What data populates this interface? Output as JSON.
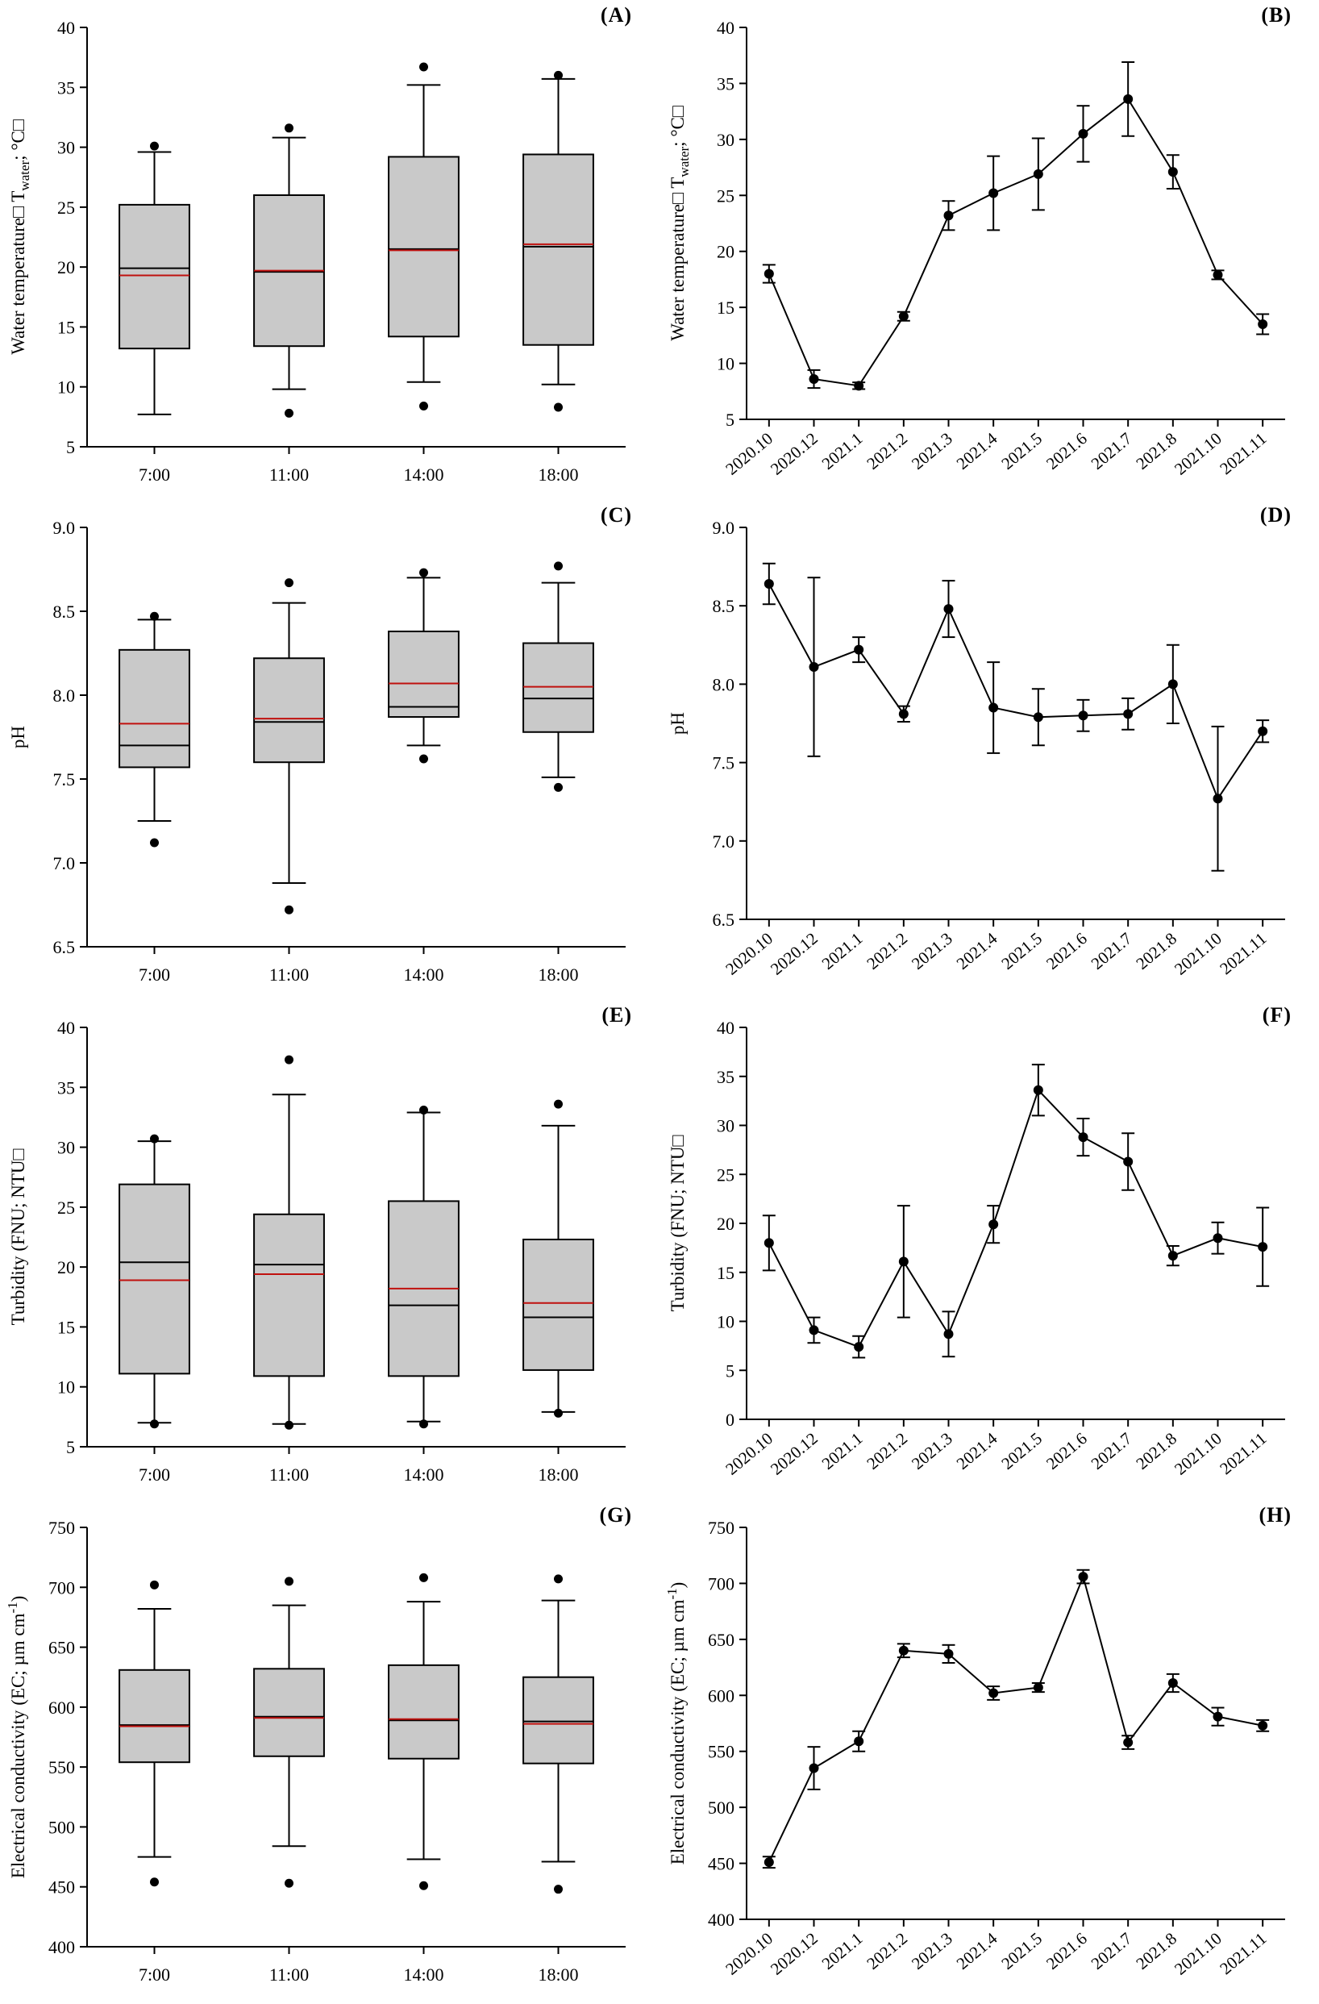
{
  "figure": {
    "panel_ids": [
      "A",
      "B",
      "C",
      "D",
      "E",
      "F",
      "G",
      "H"
    ],
    "left_column_type": "box plots by time of day",
    "right_column_type": "monthly means with error bars"
  },
  "colors": {
    "box_fill": "#c9c9c9",
    "mean_line": "#c0110e",
    "axis": "#000000",
    "point": "#000000"
  },
  "chart_data": [
    {
      "id": "A",
      "panel_label": "(A)",
      "type": "box",
      "ylabel_parts": [
        {
          "t": "Water temperature□ T"
        },
        {
          "t": "water",
          "sub": true
        },
        {
          "t": "; °C□"
        }
      ],
      "ylim": [
        5,
        40
      ],
      "ytick_step": 5,
      "ytick_decimals": 0,
      "categories": [
        "7:00",
        "11:00",
        "14:00",
        "18:00"
      ],
      "boxes": [
        {
          "whisker_low": 7.7,
          "q1": 13.2,
          "median": 19.9,
          "mean": 19.3,
          "q3": 25.2,
          "whisker_high": 29.6,
          "outliers": [
            30.1
          ]
        },
        {
          "whisker_low": 9.8,
          "q1": 13.4,
          "median": 19.6,
          "mean": 19.7,
          "q3": 26.0,
          "whisker_high": 30.8,
          "outliers": [
            31.6,
            7.8
          ]
        },
        {
          "whisker_low": 10.4,
          "q1": 14.2,
          "median": 21.5,
          "mean": 21.4,
          "q3": 29.2,
          "whisker_high": 35.2,
          "outliers": [
            36.7,
            8.4
          ]
        },
        {
          "whisker_low": 10.2,
          "q1": 13.5,
          "median": 21.7,
          "mean": 21.9,
          "q3": 29.4,
          "whisker_high": 35.7,
          "outliers": [
            36.0,
            8.3
          ]
        }
      ]
    },
    {
      "id": "B",
      "panel_label": "(B)",
      "type": "line",
      "ylabel_parts": [
        {
          "t": "Water temperature□ T"
        },
        {
          "t": "water",
          "sub": true
        },
        {
          "t": "; °C□"
        }
      ],
      "ylim": [
        5,
        40
      ],
      "ytick_step": 5,
      "ytick_decimals": 0,
      "x": [
        "2020.10",
        "2020.12",
        "2021.1",
        "2021.2",
        "2021.3",
        "2021.4",
        "2021.5",
        "2021.6",
        "2021.7",
        "2021.8",
        "2021.10",
        "2021.11"
      ],
      "y": [
        18.0,
        8.6,
        8.0,
        14.2,
        23.2,
        25.2,
        26.9,
        30.5,
        33.6,
        27.1,
        17.9,
        13.5
      ],
      "yerr": [
        0.8,
        0.8,
        0.3,
        0.4,
        1.3,
        3.3,
        3.2,
        2.5,
        3.3,
        1.5,
        0.4,
        0.9
      ]
    },
    {
      "id": "C",
      "panel_label": "(C)",
      "type": "box",
      "ylabel_parts": [
        {
          "t": "pH"
        }
      ],
      "ylim": [
        6.5,
        9.0
      ],
      "ytick_step": 0.5,
      "ytick_decimals": 1,
      "categories": [
        "7:00",
        "11:00",
        "14:00",
        "18:00"
      ],
      "boxes": [
        {
          "whisker_low": 7.25,
          "q1": 7.57,
          "median": 7.7,
          "mean": 7.83,
          "q3": 8.27,
          "whisker_high": 8.45,
          "outliers": [
            8.47,
            7.12
          ]
        },
        {
          "whisker_low": 6.88,
          "q1": 7.6,
          "median": 7.84,
          "mean": 7.86,
          "q3": 8.22,
          "whisker_high": 8.55,
          "outliers": [
            8.67,
            6.72
          ]
        },
        {
          "whisker_low": 7.7,
          "q1": 7.87,
          "median": 7.93,
          "mean": 8.07,
          "q3": 8.38,
          "whisker_high": 8.7,
          "outliers": [
            8.73,
            7.62
          ]
        },
        {
          "whisker_low": 7.51,
          "q1": 7.78,
          "median": 7.98,
          "mean": 8.05,
          "q3": 8.31,
          "whisker_high": 8.67,
          "outliers": [
            8.77,
            7.45
          ]
        }
      ]
    },
    {
      "id": "D",
      "panel_label": "(D)",
      "type": "line",
      "ylabel_parts": [
        {
          "t": "pH"
        }
      ],
      "ylim": [
        6.5,
        9.0
      ],
      "ytick_step": 0.5,
      "ytick_decimals": 1,
      "x": [
        "2020.10",
        "2020.12",
        "2021.1",
        "2021.2",
        "2021.3",
        "2021.4",
        "2021.5",
        "2021.6",
        "2021.7",
        "2021.8",
        "2021.10",
        "2021.11"
      ],
      "y": [
        8.64,
        8.11,
        8.22,
        7.81,
        8.48,
        7.85,
        7.79,
        7.8,
        7.81,
        8.0,
        7.27,
        7.7
      ],
      "yerr": [
        0.13,
        0.57,
        0.08,
        0.05,
        0.18,
        0.29,
        0.18,
        0.1,
        0.1,
        0.25,
        0.46,
        0.07
      ]
    },
    {
      "id": "E",
      "panel_label": "(E)",
      "type": "box",
      "ylabel_parts": [
        {
          "t": "Turbidity (FNU; NTU□"
        }
      ],
      "ylim": [
        5,
        40
      ],
      "ytick_step": 5,
      "ytick_decimals": 0,
      "categories": [
        "7:00",
        "11:00",
        "14:00",
        "18:00"
      ],
      "boxes": [
        {
          "whisker_low": 7.0,
          "q1": 11.1,
          "median": 20.4,
          "mean": 18.9,
          "q3": 26.9,
          "whisker_high": 30.5,
          "outliers": [
            30.7,
            6.9
          ]
        },
        {
          "whisker_low": 6.9,
          "q1": 10.9,
          "median": 20.2,
          "mean": 19.4,
          "q3": 24.4,
          "whisker_high": 34.4,
          "outliers": [
            37.3,
            6.8
          ]
        },
        {
          "whisker_low": 7.1,
          "q1": 10.9,
          "median": 16.8,
          "mean": 18.2,
          "q3": 25.5,
          "whisker_high": 32.9,
          "outliers": [
            33.1,
            6.9
          ]
        },
        {
          "whisker_low": 7.9,
          "q1": 11.4,
          "median": 15.8,
          "mean": 17.0,
          "q3": 22.3,
          "whisker_high": 31.8,
          "outliers": [
            33.6,
            7.8
          ]
        }
      ]
    },
    {
      "id": "F",
      "panel_label": "(F)",
      "type": "line",
      "ylabel_parts": [
        {
          "t": "Turbidity (FNU; NTU□"
        }
      ],
      "ylim": [
        0,
        40
      ],
      "ytick_step": 5,
      "ytick_decimals": 0,
      "x": [
        "2020.10",
        "2020.12",
        "2021.1",
        "2021.2",
        "2021.3",
        "2021.4",
        "2021.5",
        "2021.6",
        "2021.7",
        "2021.8",
        "2021.10",
        "2021.11"
      ],
      "y": [
        18.0,
        9.1,
        7.4,
        16.1,
        8.7,
        19.9,
        33.6,
        28.8,
        26.3,
        16.7,
        18.5,
        17.6
      ],
      "yerr": [
        2.8,
        1.3,
        1.1,
        5.7,
        2.3,
        1.9,
        2.6,
        1.9,
        2.9,
        1.0,
        1.6,
        4.0
      ]
    },
    {
      "id": "G",
      "panel_label": "(G)",
      "type": "box",
      "ylabel_parts": [
        {
          "t": "Electrical conductivity (EC; µm cm"
        },
        {
          "t": "-1",
          "sup": true
        },
        {
          "t": ")"
        }
      ],
      "ylim": [
        400,
        750
      ],
      "ytick_step": 50,
      "ytick_decimals": 0,
      "categories": [
        "7:00",
        "11:00",
        "14:00",
        "18:00"
      ],
      "boxes": [
        {
          "whisker_low": 475,
          "q1": 554,
          "median": 585,
          "mean": 584,
          "q3": 631,
          "whisker_high": 682,
          "outliers": [
            702,
            454
          ]
        },
        {
          "whisker_low": 484,
          "q1": 559,
          "median": 592,
          "mean": 591,
          "q3": 632,
          "whisker_high": 685,
          "outliers": [
            705,
            453
          ]
        },
        {
          "whisker_low": 473,
          "q1": 557,
          "median": 589,
          "mean": 590,
          "q3": 635,
          "whisker_high": 688,
          "outliers": [
            708,
            451
          ]
        },
        {
          "whisker_low": 471,
          "q1": 553,
          "median": 588,
          "mean": 586,
          "q3": 625,
          "whisker_high": 689,
          "outliers": [
            707,
            448
          ]
        }
      ]
    },
    {
      "id": "H",
      "panel_label": "(H)",
      "type": "line",
      "ylabel_parts": [
        {
          "t": "Electrical conductivity (EC; µm cm"
        },
        {
          "t": "-1",
          "sup": true
        },
        {
          "t": ")"
        }
      ],
      "ylim": [
        400,
        750
      ],
      "ytick_step": 50,
      "ytick_decimals": 0,
      "x": [
        "2020.10",
        "2020.12",
        "2021.1",
        "2021.2",
        "2021.3",
        "2021.4",
        "2021.5",
        "2021.6",
        "2021.7",
        "2021.8",
        "2021.10",
        "2021.11"
      ],
      "y": [
        451,
        535,
        559,
        640,
        637,
        602,
        607,
        706,
        558,
        611,
        581,
        573
      ],
      "yerr": [
        5,
        19,
        9,
        6,
        8,
        6,
        4,
        6,
        6,
        8,
        8,
        5
      ]
    }
  ]
}
